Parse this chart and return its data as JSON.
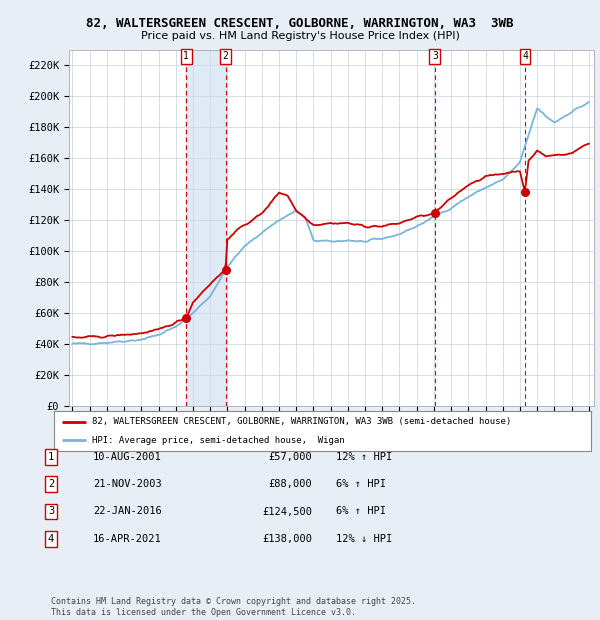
{
  "title_line1": "82, WALTERSGREEN CRESCENT, GOLBORNE, WARRINGTON, WA3  3WB",
  "title_line2": "Price paid vs. HM Land Registry's House Price Index (HPI)",
  "ylabel_ticks": [
    "£0",
    "£20K",
    "£40K",
    "£60K",
    "£80K",
    "£100K",
    "£120K",
    "£140K",
    "£160K",
    "£180K",
    "£200K",
    "£220K"
  ],
  "ytick_values": [
    0,
    20000,
    40000,
    60000,
    80000,
    100000,
    120000,
    140000,
    160000,
    180000,
    200000,
    220000
  ],
  "ylim": [
    0,
    230000
  ],
  "x_start_year": 1995,
  "x_end_year": 2025,
  "hpi_color": "#7ab4d8",
  "price_color": "#cc0000",
  "background_color": "#e8eef5",
  "plot_bg_color": "#ffffff",
  "grid_color": "#c8d0dc",
  "sale_dates_decimal": [
    2001.608,
    2003.894,
    2016.055,
    2021.289
  ],
  "sale_prices": [
    57000,
    88000,
    124500,
    138000
  ],
  "sale_labels": [
    "1",
    "2",
    "3",
    "4"
  ],
  "vspan_pairs": [
    [
      2001.608,
      2003.894
    ]
  ],
  "legend_line1": "82, WALTERSGREEN CRESCENT, GOLBORNE, WARRINGTON, WA3 3WB (semi-detached house)",
  "legend_line2": "HPI: Average price, semi-detached house,  Wigan",
  "table_data": [
    [
      "1",
      "10-AUG-2001",
      "£57,000",
      "12% ↑ HPI"
    ],
    [
      "2",
      "21-NOV-2003",
      "£88,000",
      "6% ↑ HPI"
    ],
    [
      "3",
      "22-JAN-2016",
      "£124,500",
      "6% ↑ HPI"
    ],
    [
      "4",
      "16-APR-2021",
      "£138,000",
      "12% ↓ HPI"
    ]
  ],
  "footer_text": "Contains HM Land Registry data © Crown copyright and database right 2025.\nThis data is licensed under the Open Government Licence v3.0.",
  "xtick_years": [
    1995,
    1996,
    1997,
    1998,
    1999,
    2000,
    2001,
    2002,
    2003,
    2004,
    2005,
    2006,
    2007,
    2008,
    2009,
    2010,
    2011,
    2012,
    2013,
    2014,
    2015,
    2016,
    2017,
    2018,
    2019,
    2020,
    2021,
    2022,
    2023,
    2024,
    2025
  ]
}
